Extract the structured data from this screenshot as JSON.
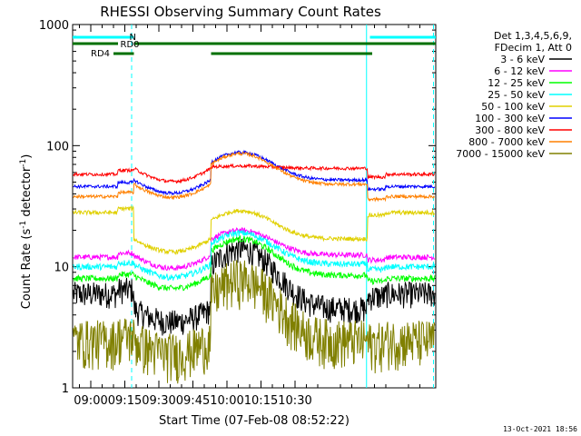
{
  "chart_data": {
    "type": "line",
    "title": "RHESSI Observing Summary Count Rates",
    "xlabel": "Start Time (07-Feb-08 08:52:22)",
    "ylabel_main": "Count Rate (s",
    "ylabel_sup1": "-1",
    "ylabel_mid": " detector",
    "ylabel_sup2": "-1",
    "ylabel_end": ")",
    "yscale": "log",
    "ylim": [
      1,
      1000
    ],
    "y_ticks": [
      "1",
      "10",
      "100",
      "1000"
    ],
    "xlim_minutes": [
      892,
      1052
    ],
    "x_ticks": [
      {
        "label": "09:00",
        "minute": 900
      },
      {
        "label": "09:15",
        "minute": 915
      },
      {
        "label": "09:30",
        "minute": 930
      },
      {
        "label": "09:45",
        "minute": 945
      },
      {
        "label": "10:00",
        "minute": 960
      },
      {
        "label": "10:15",
        "minute": 975
      },
      {
        "label": "10:30",
        "minute": 990
      }
    ],
    "legend_header": [
      "Det 1,3,4,5,6,9,",
      "FDecim 1, Att 0"
    ],
    "legend_position": "right",
    "series": [
      {
        "name": "3 - 6 keV",
        "color": "#000000",
        "base": 6,
        "day": 4.5,
        "peak": 14,
        "noise": 0.25
      },
      {
        "name": "6 - 12 keV",
        "color": "#ff00ff",
        "base": 12,
        "day": 12.5,
        "peak": 20,
        "noise": 0.05
      },
      {
        "name": "12 - 25 keV",
        "color": "#00ff00",
        "base": 8,
        "day": 8.5,
        "peak": 17,
        "noise": 0.06
      },
      {
        "name": "25 - 50 keV",
        "color": "#00ffff",
        "base": 10,
        "day": 10.5,
        "peak": 19,
        "noise": 0.06
      },
      {
        "name": "50 - 100 keV",
        "color": "#e0d000",
        "base": 28,
        "day": 17,
        "peak": 29,
        "noise": 0.04
      },
      {
        "name": "100 - 300 keV",
        "color": "#0000ff",
        "base": 46,
        "day": 52,
        "peak": 88,
        "noise": 0.03
      },
      {
        "name": "300 - 800 keV",
        "color": "#ff0000",
        "base": 58,
        "day": 65,
        "peak": 68,
        "noise": 0.03
      },
      {
        "name": "800 - 7000 keV",
        "color": "#ff8000",
        "base": 38,
        "day": 48,
        "peak": 86,
        "noise": 0.03
      },
      {
        "name": "7000 - 15000 keV",
        "color": "#808000",
        "base": 2.5,
        "day": 2.5,
        "peak": 8,
        "noise": 0.45
      }
    ],
    "flag_labels": {
      "n": "N",
      "rd0": "RD0",
      "rd4": "RD4"
    },
    "flag_bars": [
      {
        "label": "N",
        "color": "#00ffff",
        "segments": [
          [
            892,
            919
          ],
          [
            1023,
            1052
          ]
        ]
      },
      {
        "label": "RD0",
        "color": "#007000",
        "segments": [
          [
            892,
            912
          ],
          [
            919,
            1052
          ]
        ]
      },
      {
        "label": "RD4",
        "color": "#007000",
        "segments": [
          [
            910,
            919
          ],
          [
            953,
            1024
          ]
        ]
      }
    ],
    "night_start_lines": [
      1021.5
    ],
    "night_end_lines": [
      918,
      1051
    ]
  },
  "footer": {
    "timestamp": "13-Oct-2021 18:56"
  }
}
